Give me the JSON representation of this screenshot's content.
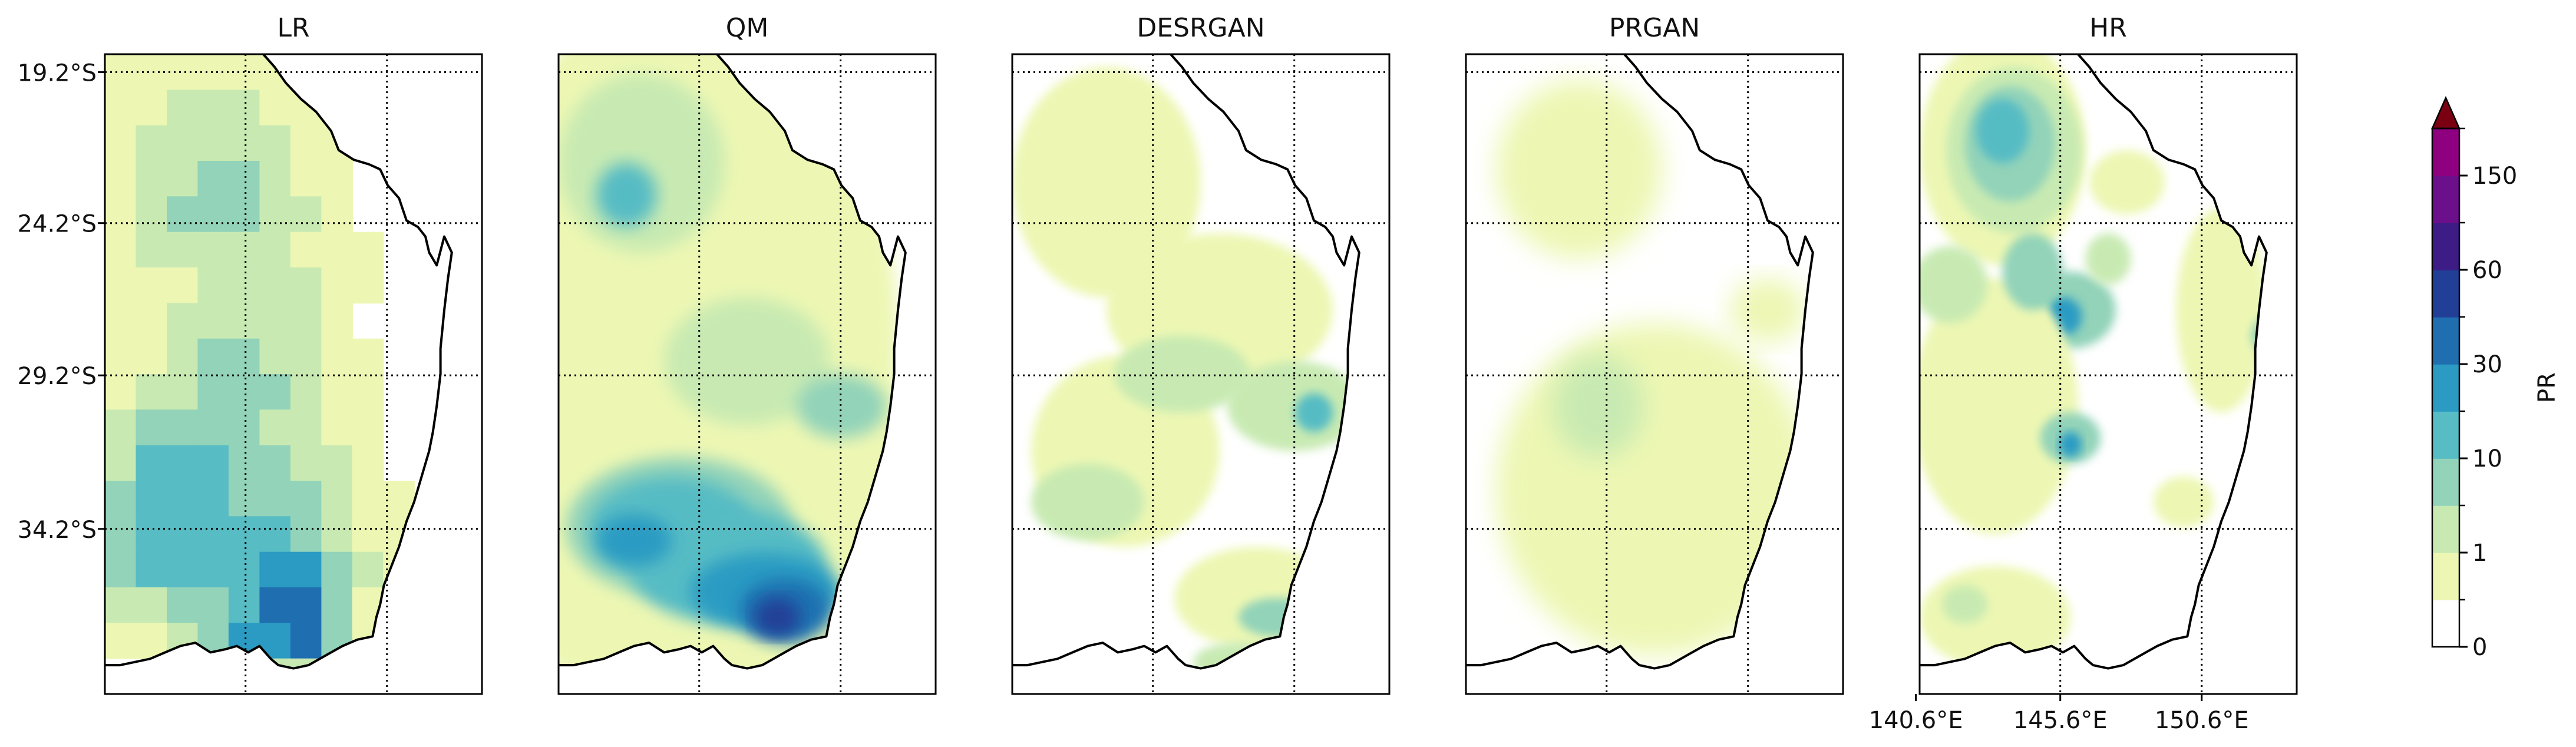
{
  "figure": {
    "panels": [
      {
        "id": "lr",
        "title": "LR",
        "pattern": "blocky"
      },
      {
        "id": "qm",
        "title": "QM",
        "pattern": "smooth_dense"
      },
      {
        "id": "desrgan",
        "title": "DESRGAN",
        "pattern": "patchy_light"
      },
      {
        "id": "prgan",
        "title": "PRGAN",
        "pattern": "speckle_light"
      },
      {
        "id": "hr",
        "title": "HR",
        "pattern": "convective"
      }
    ],
    "lat_ticks": [
      "19.2°S",
      "24.2°S",
      "29.2°S",
      "34.2°S"
    ],
    "lon_ticks": [
      "140.6°E",
      "145.6°E",
      "150.6°E"
    ],
    "colorbar": {
      "label": "PR",
      "tick_labels": [
        "0",
        "1",
        "10",
        "30",
        "60",
        "150"
      ],
      "colors": [
        "#ffffff",
        "#edf7b3",
        "#c8eab2",
        "#92d3b9",
        "#57bcc4",
        "#2b9bc3",
        "#1f6fb0",
        "#223f97",
        "#3d1c86",
        "#6b0f8a",
        "#8e0080"
      ],
      "extend_color": "#7a0011",
      "extend": "max"
    },
    "coastline_color": "#000000"
  }
}
